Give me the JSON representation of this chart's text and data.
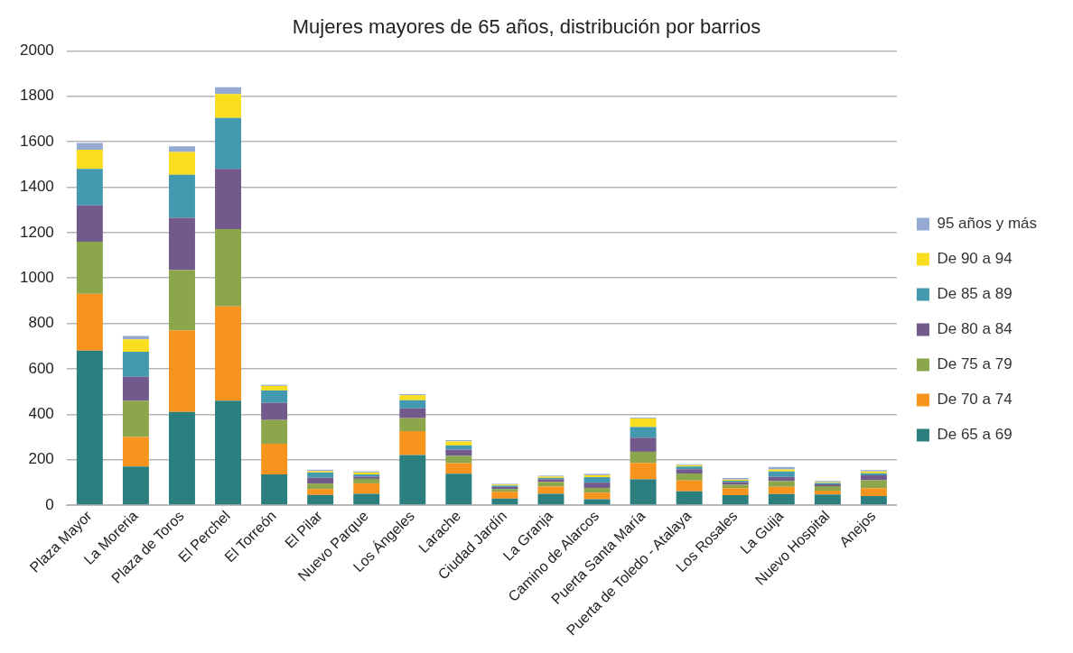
{
  "chart_data": {
    "type": "bar",
    "title": "Mujeres mayores de 65 años, distribución por barrios",
    "stacked": true,
    "categories": [
      "Plaza Mayor",
      "La Moreria",
      "Plaza de Toros",
      "El Perchel",
      "El Torreón",
      "El Pilar",
      "Nuevo Parque",
      "Los Ángeles",
      "Larache",
      "Ciudad Jardín",
      "La Granja",
      "Camino de Alarcos",
      "Puerta Santa María",
      "Puerta de Toledo - Atalaya",
      "Los Rosales",
      "La Guija",
      "Nuevo Hospital",
      "Anejos"
    ],
    "series": [
      {
        "name": "De 65 a 69",
        "color": "#2b807f",
        "values": [
          680,
          170,
          410,
          460,
          135,
          45,
          50,
          221,
          138,
          29,
          50,
          26,
          114,
          61,
          44,
          49,
          47,
          40
        ]
      },
      {
        "name": "De 70 a 74",
        "color": "#f7941d",
        "values": [
          250,
          130,
          360,
          415,
          135,
          26,
          46,
          105,
          47,
          30,
          32,
          29,
          72,
          48,
          31,
          32,
          17,
          35
        ]
      },
      {
        "name": "De 75 a 79",
        "color": "#8ba64b",
        "values": [
          230,
          160,
          265,
          340,
          105,
          24,
          20,
          57,
          32,
          12,
          20,
          21,
          49,
          30,
          15,
          26,
          20,
          35
        ]
      },
      {
        "name": "De 80 a 84",
        "color": "#735a8c",
        "values": [
          160,
          105,
          230,
          265,
          75,
          26,
          10,
          43,
          27,
          9,
          12,
          23,
          62,
          19,
          12,
          17,
          8,
          21
        ]
      },
      {
        "name": "De 85 a 89",
        "color": "#4399b0",
        "values": [
          160,
          110,
          190,
          225,
          55,
          23,
          9,
          36,
          19,
          6,
          6,
          24,
          47,
          12,
          6,
          24,
          6,
          9
        ]
      },
      {
        "name": "De 90 a 94",
        "color": "#f8de1e",
        "values": [
          85,
          55,
          100,
          105,
          20,
          6,
          9,
          22,
          18,
          5,
          6,
          9,
          38,
          6,
          5,
          9,
          4,
          8
        ]
      },
      {
        "name": "95 años y más",
        "color": "#94aad3",
        "values": [
          30,
          15,
          25,
          30,
          5,
          6,
          5,
          5,
          5,
          3,
          4,
          6,
          4,
          4,
          6,
          11,
          5,
          6
        ]
      }
    ],
    "ylim": [
      0,
      2000
    ],
    "yticks": [
      0,
      200,
      400,
      600,
      800,
      1000,
      1200,
      1400,
      1600,
      1800,
      2000
    ],
    "grid": "y",
    "legend": "right"
  }
}
